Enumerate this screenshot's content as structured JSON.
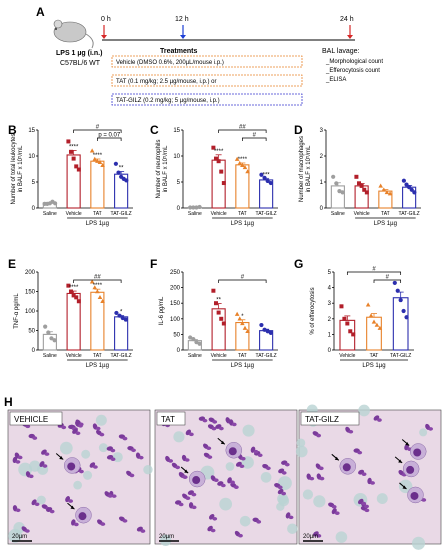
{
  "panels": {
    "A": "A",
    "B": "B",
    "C": "C",
    "D": "D",
    "E": "E",
    "F": "F",
    "G": "G",
    "H": "H"
  },
  "timeline": {
    "t0": "0 h",
    "t12": "12 h",
    "t24": "24 h",
    "lps_line1": "LPS 1 µg (i.n.)",
    "lps_line2": "C57BL/6 WT",
    "treatments_title": "Treatments",
    "treatments": [
      "Vehicle (DMSO 0.6%, 200µL/mouse i.p.)",
      "TAT (0.1 mg/kg; 2.5 µg/mouse, i.p.) or",
      "TAT-GILZ (0.2 mg/kg; 5 µg/mouse, i.p.)"
    ],
    "bal_title": "BAL lavage:",
    "bal_items": [
      "_Morphological count",
      "_Efferocytosis count",
      "_ELISA"
    ]
  },
  "colors": {
    "saline": "#9e9e9e",
    "vehicle": "#b21f2a",
    "tat": "#e8822a",
    "tatgilz": "#2c2fae",
    "arrow_red": "#d62828",
    "arrow_blue": "#1d3fd6",
    "box_orange": "#e8822a",
    "box_blue": "#3a3ad0"
  },
  "chart_data": [
    {
      "id": "B",
      "type": "bar",
      "categories": [
        "Saline",
        "Vehicle",
        "TAT",
        "TAT-GILZ"
      ],
      "values": [
        1.0,
        10.2,
        9.0,
        6.5
      ],
      "points": [
        [
          0.8,
          0.8,
          0.9,
          1.2,
          0.9
        ],
        [
          12.8,
          10.8,
          9.5,
          8.0,
          7.4
        ],
        [
          11.0,
          9.4,
          9.0,
          8.8,
          8.2
        ],
        [
          8.5,
          6.8,
          6.0,
          5.6,
          5.3
        ]
      ],
      "ylabel_line1": "Number of total leukocytes",
      "ylabel_line2": "in BALF x 10⁵/mL",
      "xgroup": "LPS 1µg",
      "ylim": [
        0,
        15
      ],
      "yticks": [
        0,
        5,
        10,
        15
      ],
      "stars": [
        "",
        "****",
        "****",
        "**"
      ],
      "brackets": [
        {
          "from": 1,
          "to": 3,
          "label": "#",
          "level": 1
        },
        {
          "from": 2,
          "to": 3,
          "label": "p = 0.07",
          "level": 0
        }
      ]
    },
    {
      "id": "C",
      "type": "bar",
      "categories": [
        "Saline",
        "Vehicle",
        "TAT",
        "TAT-GILZ"
      ],
      "values": [
        0.1,
        9.2,
        8.3,
        5.4
      ],
      "points": [
        [
          0.1,
          0.1,
          0.1,
          0.2
        ],
        [
          11.6,
          9.5,
          9.0,
          7.0,
          4.8
        ],
        [
          9.4,
          8.6,
          8.2,
          7.8,
          7.0
        ],
        [
          6.4,
          5.8,
          5.2,
          4.8
        ]
      ],
      "ylabel_line1": "Number of neutrophils",
      "ylabel_line2": "in BALF x 10⁵/mL",
      "xgroup": "LPS 1µg",
      "ylim": [
        0,
        15
      ],
      "yticks": [
        0,
        5,
        10,
        15
      ],
      "stars": [
        "",
        "****",
        "****",
        "***"
      ],
      "brackets": [
        {
          "from": 1,
          "to": 3,
          "label": "##",
          "level": 1
        },
        {
          "from": 2,
          "to": 3,
          "label": "#",
          "level": 0
        }
      ]
    },
    {
      "id": "D",
      "type": "bar",
      "categories": [
        "Saline",
        "Vehicle",
        "TAT",
        "TAT-GILZ"
      ],
      "values": [
        0.85,
        0.85,
        0.65,
        0.8
      ],
      "points": [
        [
          1.2,
          0.95,
          0.65,
          0.6
        ],
        [
          1.2,
          0.95,
          0.85,
          0.7,
          0.6
        ],
        [
          0.85,
          0.7,
          0.6,
          0.55
        ],
        [
          1.05,
          0.9,
          0.8,
          0.7,
          0.6
        ]
      ],
      "ylabel_line1": "Number of macrophages",
      "ylabel_line2": "in BALF x 10⁵/mL",
      "xgroup": "LPS 1µg",
      "ylim": [
        0,
        3
      ],
      "yticks": [
        0,
        1,
        2,
        3
      ],
      "stars": [
        "",
        "",
        "",
        ""
      ],
      "brackets": []
    },
    {
      "id": "E",
      "type": "bar",
      "categories": [
        "Saline",
        "Vehicle",
        "TAT",
        "TAT-GILZ"
      ],
      "values": [
        40,
        145,
        148,
        85
      ],
      "points": [
        [
          60,
          45,
          30,
          25
        ],
        [
          165,
          150,
          140,
          135,
          125
        ],
        [
          175,
          160,
          150,
          135,
          125
        ],
        [
          95,
          88,
          82,
          78
        ]
      ],
      "ylabel_line1": "TNF-α pg/mL",
      "ylabel_line2": "",
      "xgroup": "LPS 1µg",
      "ylim": [
        0,
        200
      ],
      "yticks": [
        0,
        50,
        100,
        150,
        200
      ],
      "stars": [
        "",
        "****",
        "****",
        "*"
      ],
      "brackets": [
        {
          "from": 1,
          "to": 3,
          "label": "##",
          "level": 0
        }
      ]
    },
    {
      "id": "F",
      "type": "bar",
      "categories": [
        "Saline",
        "Vehicle",
        "TAT",
        "TAT-GILZ"
      ],
      "values": [
        30,
        132,
        88,
        62
      ],
      "points": [
        [
          40,
          35,
          25,
          20
        ],
        [
          190,
          150,
          120,
          100,
          85
        ],
        [
          115,
          100,
          85,
          70,
          60
        ],
        [
          80,
          65,
          60,
          55
        ]
      ],
      "ylabel_line1": "IL-6 pg/mL",
      "ylabel_line2": "",
      "xgroup": "LPS 1µg",
      "ylim": [
        0,
        250
      ],
      "yticks": [
        0,
        50,
        100,
        150,
        200,
        250
      ],
      "stars": [
        "",
        "**",
        "*",
        ""
      ],
      "brackets": [
        {
          "from": 1,
          "to": 3,
          "label": "#",
          "level": 0
        }
      ]
    },
    {
      "id": "G",
      "type": "bar",
      "categories": [
        "Vehicle",
        "TAT",
        "TAT-GILZ"
      ],
      "values": [
        1.9,
        2.1,
        3.35
      ],
      "points": [
        [
          2.8,
          2.0,
          1.7,
          1.2,
          1.0
        ],
        [
          2.9,
          2.2,
          1.8,
          1.6,
          1.4
        ],
        [
          4.3,
          3.8,
          3.2,
          2.5,
          2.1
        ]
      ],
      "ylabel_line1": "% of efferocytosis",
      "ylabel_line2": "",
      "xgroup": "LPS 1µg",
      "ylim": [
        0,
        5
      ],
      "yticks": [
        0,
        1,
        2,
        3,
        4,
        5
      ],
      "stars": [
        "",
        "",
        ""
      ],
      "brackets": [
        {
          "from": 0,
          "to": 2,
          "label": "#",
          "level": 1
        },
        {
          "from": 1,
          "to": 2,
          "label": "#",
          "level": 0
        }
      ]
    }
  ],
  "micro": [
    {
      "label": "VEHICLE",
      "scale": "20µm"
    },
    {
      "label": "TAT",
      "scale": "20µm"
    },
    {
      "label": "TAT-GILZ",
      "scale": "20µm"
    }
  ]
}
